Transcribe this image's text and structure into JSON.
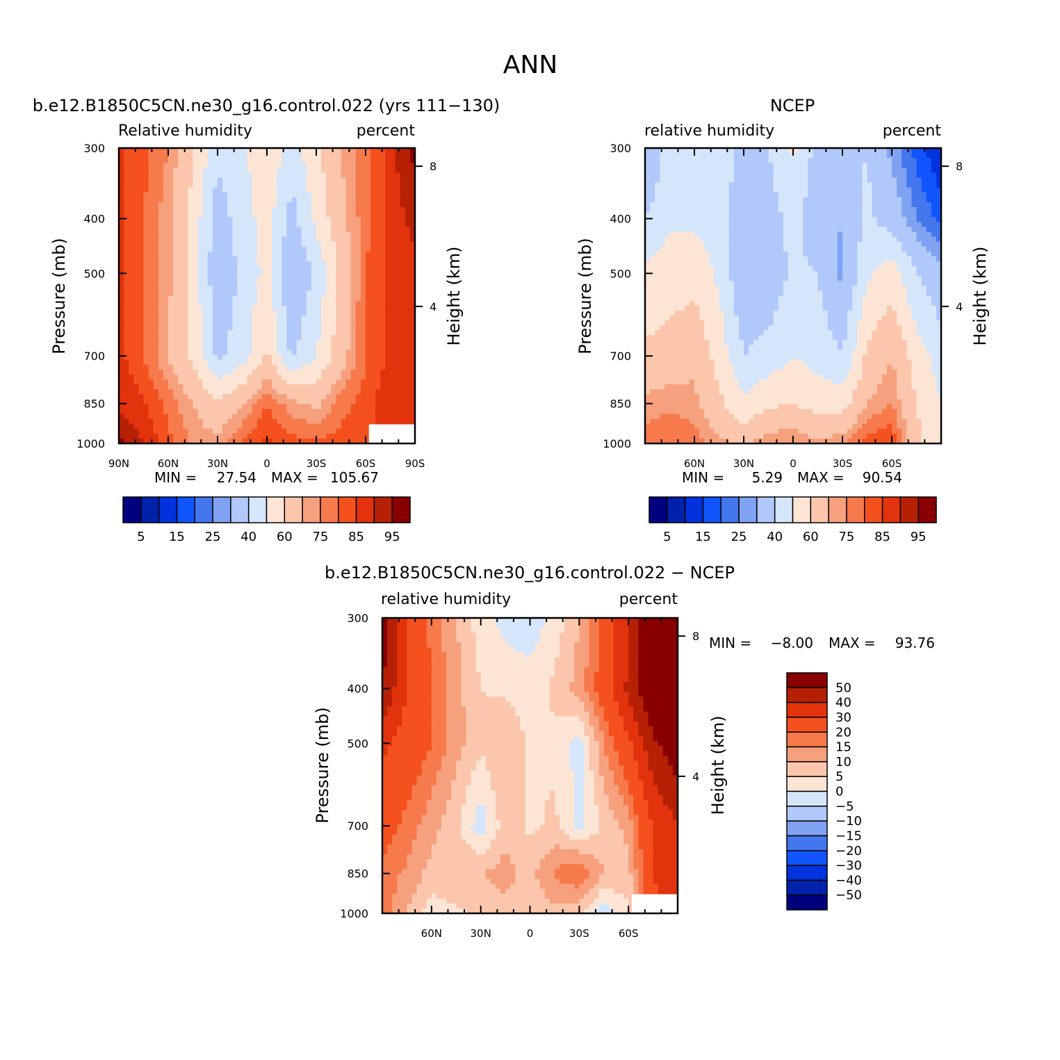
{
  "suptitle": "ANN",
  "chart_data": [
    {
      "type": "heatmap",
      "title": "b.e12.B1850C5CN.ne30_g16.control.022 (yrs 111−130)",
      "subtitle_left": "Relative humidity",
      "subtitle_right": "percent",
      "xlabel": "",
      "ylabel": "Pressure (mb)",
      "ylabel_right": "Height (km)",
      "x_ticks": [
        "90N",
        "60N",
        "30N",
        "0",
        "30S",
        "60S",
        "90S"
      ],
      "x_tick_values": [
        90,
        60,
        30,
        0,
        -30,
        -60,
        -90
      ],
      "y_ticks": [
        "300",
        "400",
        "500",
        "700",
        "850",
        "1000"
      ],
      "y_tick_values": [
        300,
        400,
        500,
        700,
        850,
        1000
      ],
      "height_ticks": [
        "8",
        "4"
      ],
      "height_tick_values": [
        8,
        4
      ],
      "xlim": [
        90,
        -90
      ],
      "ylim": [
        1000,
        300
      ],
      "y_scale": "log",
      "min_label": "MIN =",
      "min_value": "27.54",
      "max_label": "MAX =",
      "max_value": "105.67",
      "colorbar": {
        "orientation": "horizontal",
        "labels": [
          "5",
          "15",
          "25",
          "40",
          "60",
          "75",
          "85",
          "95"
        ],
        "levels": [
          5,
          10,
          15,
          20,
          25,
          30,
          40,
          50,
          60,
          70,
          75,
          80,
          85,
          90,
          95
        ]
      },
      "lat": [
        90,
        75,
        60,
        45,
        30,
        15,
        0,
        -15,
        -30,
        -45,
        -60,
        -75,
        -90
      ],
      "pressure": [
        300,
        400,
        500,
        700,
        850,
        1000
      ],
      "values": [
        [
          86,
          82,
          75,
          62,
          42,
          48,
          58,
          45,
          58,
          70,
          78,
          88,
          97
        ],
        [
          86,
          80,
          72,
          56,
          35,
          45,
          55,
          36,
          52,
          68,
          78,
          87,
          92
        ],
        [
          87,
          80,
          72,
          56,
          32,
          42,
          53,
          30,
          42,
          62,
          80,
          87,
          88
        ],
        [
          87,
          80,
          70,
          58,
          38,
          45,
          62,
          38,
          50,
          66,
          80,
          86,
          86
        ],
        [
          88,
          86,
          78,
          70,
          62,
          70,
          80,
          72,
          68,
          78,
          82,
          90,
          90
        ],
        [
          97,
          90,
          82,
          74,
          72,
          80,
          86,
          82,
          82,
          82,
          84,
          88,
          90
        ]
      ],
      "missing_region": "lower-right corner (below ground)"
    },
    {
      "type": "heatmap",
      "title": "NCEP",
      "subtitle_left": "relative humidity",
      "subtitle_right": "percent",
      "xlabel": "",
      "ylabel": "Pressure (mb)",
      "ylabel_right": "Height (km)",
      "x_ticks": [
        "60N",
        "30N",
        "0",
        "30S",
        "60S"
      ],
      "x_tick_values": [
        60,
        30,
        0,
        -30,
        -60
      ],
      "y_ticks": [
        "300",
        "400",
        "500",
        "700",
        "850",
        "1000"
      ],
      "y_tick_values": [
        300,
        400,
        500,
        700,
        850,
        1000
      ],
      "height_ticks": [
        "8",
        "4"
      ],
      "height_tick_values": [
        8,
        4
      ],
      "xlim": [
        90,
        -90
      ],
      "ylim": [
        1000,
        300
      ],
      "y_scale": "log",
      "min_label": "MIN =",
      "min_value": "5.29",
      "max_label": "MAX =",
      "max_value": "90.54",
      "colorbar": {
        "orientation": "horizontal",
        "labels": [
          "5",
          "15",
          "25",
          "40",
          "60",
          "75",
          "85",
          "95"
        ],
        "levels": [
          5,
          10,
          15,
          20,
          25,
          30,
          40,
          50,
          60,
          70,
          75,
          80,
          85,
          90,
          95
        ]
      },
      "lat": [
        90,
        75,
        60,
        45,
        30,
        15,
        0,
        -15,
        -30,
        -45,
        -60,
        -75,
        -90
      ],
      "pressure": [
        300,
        400,
        500,
        700,
        850,
        1000
      ],
      "values": [
        [
          28,
          45,
          48,
          45,
          38,
          40,
          52,
          36,
          38,
          40,
          28,
          18,
          10
        ],
        [
          40,
          48,
          48,
          45,
          32,
          35,
          44,
          32,
          30,
          42,
          35,
          25,
          18
        ],
        [
          52,
          55,
          56,
          48,
          30,
          32,
          42,
          40,
          28,
          48,
          55,
          40,
          32
        ],
        [
          62,
          64,
          68,
          56,
          40,
          44,
          50,
          46,
          40,
          62,
          70,
          55,
          45
        ],
        [
          72,
          74,
          72,
          62,
          52,
          58,
          60,
          56,
          56,
          70,
          75,
          60,
          50
        ],
        [
          78,
          80,
          78,
          72,
          68,
          75,
          75,
          72,
          74,
          82,
          85,
          62,
          55
        ]
      ]
    },
    {
      "type": "heatmap",
      "title": "b.e12.B1850C5CN.ne30_g16.control.022 − NCEP",
      "subtitle_left": "relative humidity",
      "subtitle_right": "percent",
      "xlabel": "",
      "ylabel": "Pressure (mb)",
      "ylabel_right": "Height (km)",
      "x_ticks": [
        "60N",
        "30N",
        "0",
        "30S",
        "60S"
      ],
      "x_tick_values": [
        60,
        30,
        0,
        -30,
        -60
      ],
      "y_ticks": [
        "300",
        "400",
        "500",
        "700",
        "850",
        "1000"
      ],
      "y_tick_values": [
        300,
        400,
        500,
        700,
        850,
        1000
      ],
      "height_ticks": [
        "8",
        "4"
      ],
      "height_tick_values": [
        8,
        4
      ],
      "xlim": [
        90,
        -90
      ],
      "ylim": [
        1000,
        300
      ],
      "y_scale": "log",
      "min_label": "MIN =",
      "min_value": "−8.00",
      "max_label": "MAX =",
      "max_value": "93.76",
      "colorbar": {
        "orientation": "vertical",
        "labels": [
          "50",
          "40",
          "30",
          "20",
          "15",
          "10",
          "5",
          "0",
          "−5",
          "−10",
          "−15",
          "−20",
          "−30",
          "−40",
          "−50"
        ],
        "levels": [
          50,
          40,
          30,
          20,
          15,
          10,
          5,
          0,
          -5,
          -10,
          -15,
          -20,
          -30,
          -40,
          -50
        ]
      },
      "lat": [
        90,
        75,
        60,
        45,
        30,
        15,
        0,
        -15,
        -30,
        -45,
        -60,
        -75,
        -90
      ],
      "pressure": [
        300,
        400,
        500,
        700,
        850,
        1000
      ],
      "values": [
        [
          58,
          30,
          18,
          10,
          2,
          -2,
          -3,
          2,
          10,
          22,
          40,
          65,
          88
        ],
        [
          50,
          30,
          20,
          12,
          5,
          4,
          2,
          6,
          12,
          24,
          42,
          62,
          78
        ],
        [
          32,
          26,
          20,
          12,
          6,
          10,
          4,
          4,
          -2,
          15,
          28,
          48,
          58
        ],
        [
          24,
          18,
          12,
          6,
          -3,
          8,
          4,
          6,
          -2,
          6,
          12,
          30,
          40
        ],
        [
          18,
          14,
          8,
          10,
          10,
          12,
          8,
          16,
          20,
          10,
          8,
          30,
          40
        ],
        [
          18,
          10,
          2,
          4,
          6,
          8,
          6,
          8,
          6,
          -4,
          4,
          26,
          35
        ]
      ],
      "missing_region": "lower-right corner (below ground)"
    }
  ],
  "colors": {
    "abs_scale": [
      "#00007f",
      "#0022aa",
      "#0033dd",
      "#1155ff",
      "#4477ee",
      "#7fa2f2",
      "#b0c8fa",
      "#d5e6fb",
      "#fde5d5",
      "#fbc6ac",
      "#f7a07d",
      "#f77a4c",
      "#f4511e",
      "#e2330d",
      "#b62106",
      "#880000"
    ],
    "diff_scale": [
      "#00007f",
      "#0022aa",
      "#0033dd",
      "#1155ff",
      "#4477ee",
      "#7fa2f2",
      "#b0c8fa",
      "#d5e6fb",
      "#fde5d5",
      "#fbc6ac",
      "#f7a07d",
      "#f77a4c",
      "#f4511e",
      "#e2330d",
      "#b62106",
      "#880000"
    ],
    "missing": "#ffffff"
  }
}
